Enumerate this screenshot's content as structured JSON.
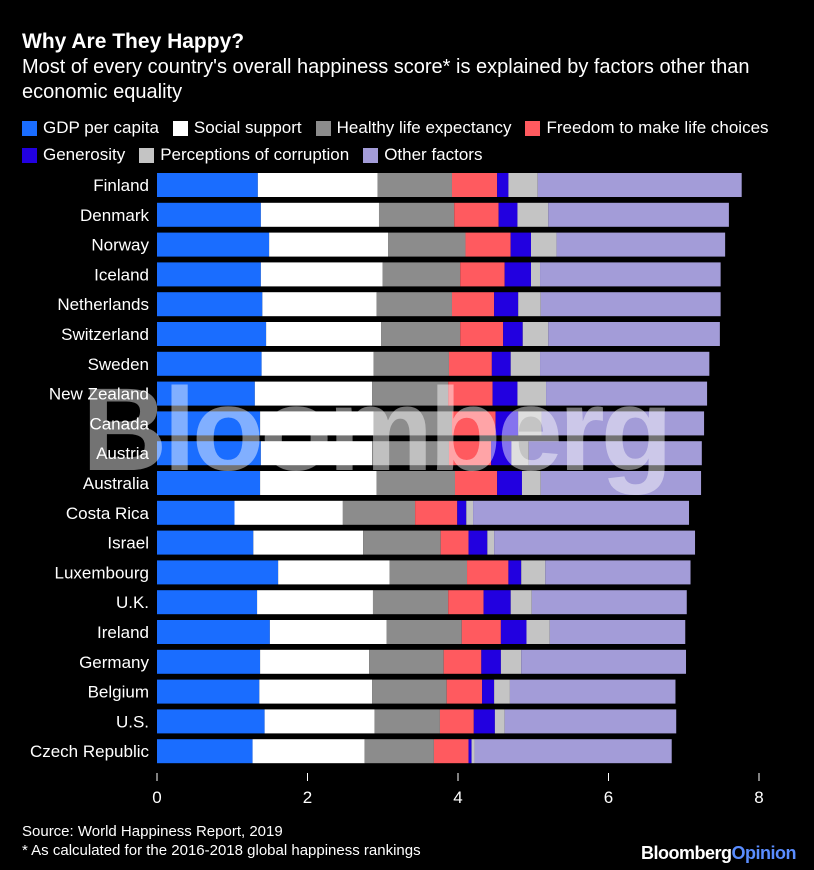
{
  "title": "Why Are They Happy?",
  "subtitle": "Most of every country's overall happiness score* is explained by factors other than economic equality",
  "source": "Source: World Happiness Report, 2019",
  "footnote": "* As calculated for the 2016-2018 global happiness rankings",
  "watermark": "Bloomberg",
  "brand": {
    "part1": "Bloomberg",
    "part2": "Opinion",
    "accent": "#5a8dff"
  },
  "chart_data": {
    "type": "bar",
    "orientation": "horizontal",
    "stacked": true,
    "xlim": [
      0,
      8
    ],
    "xticks": [
      "0",
      "2",
      "4",
      "6",
      "8"
    ],
    "grid": false,
    "legend_position": "top",
    "categories": [
      "Finland",
      "Denmark",
      "Norway",
      "Iceland",
      "Netherlands",
      "Switzerland",
      "Sweden",
      "New Zealand",
      "Canada",
      "Austria",
      "Australia",
      "Costa Rica",
      "Israel",
      "Luxembourg",
      "U.K.",
      "Ireland",
      "Germany",
      "Belgium",
      "U.S.",
      "Czech Republic"
    ],
    "series": [
      {
        "name": "GDP per capita",
        "color": "#1a6dff",
        "values": [
          1.34,
          1.38,
          1.49,
          1.38,
          1.4,
          1.45,
          1.39,
          1.3,
          1.37,
          1.38,
          1.37,
          1.03,
          1.28,
          1.61,
          1.33,
          1.5,
          1.37,
          1.36,
          1.43,
          1.27
        ]
      },
      {
        "name": "Social support",
        "color": "#ffffff",
        "values": [
          1.59,
          1.57,
          1.58,
          1.62,
          1.52,
          1.53,
          1.49,
          1.56,
          1.51,
          1.48,
          1.55,
          1.44,
          1.46,
          1.48,
          1.54,
          1.55,
          1.45,
          1.5,
          1.46,
          1.49
        ]
      },
      {
        "name": "Healthy life expectancy",
        "color": "#8c8c8c",
        "values": [
          0.99,
          1.0,
          1.03,
          1.03,
          1.0,
          1.05,
          1.0,
          1.01,
          1.04,
          1.02,
          1.04,
          0.96,
          1.03,
          1.03,
          1.0,
          1.0,
          0.99,
          0.99,
          0.87,
          0.92
        ]
      },
      {
        "name": "Freedom to make life choices",
        "color": "#ff5a5f",
        "values": [
          0.6,
          0.59,
          0.6,
          0.59,
          0.56,
          0.57,
          0.57,
          0.59,
          0.58,
          0.56,
          0.56,
          0.56,
          0.37,
          0.55,
          0.47,
          0.52,
          0.5,
          0.47,
          0.45,
          0.46
        ]
      },
      {
        "name": "Generosity",
        "color": "#2200e0",
        "values": [
          0.15,
          0.25,
          0.27,
          0.35,
          0.32,
          0.26,
          0.25,
          0.33,
          0.3,
          0.27,
          0.33,
          0.12,
          0.25,
          0.17,
          0.36,
          0.34,
          0.26,
          0.16,
          0.28,
          0.04
        ]
      },
      {
        "name": "Perceptions of corruption",
        "color": "#c4c4c4",
        "values": [
          0.39,
          0.41,
          0.34,
          0.12,
          0.3,
          0.34,
          0.39,
          0.38,
          0.31,
          0.23,
          0.25,
          0.09,
          0.09,
          0.32,
          0.28,
          0.31,
          0.27,
          0.21,
          0.13,
          0.04
        ]
      },
      {
        "name": "Other factors",
        "color": "#a39cd8",
        "values": [
          2.71,
          2.4,
          2.24,
          2.4,
          2.39,
          2.28,
          2.25,
          2.14,
          2.16,
          2.3,
          2.13,
          2.87,
          2.67,
          1.93,
          2.06,
          1.8,
          2.19,
          2.2,
          2.28,
          2.62
        ]
      }
    ]
  }
}
